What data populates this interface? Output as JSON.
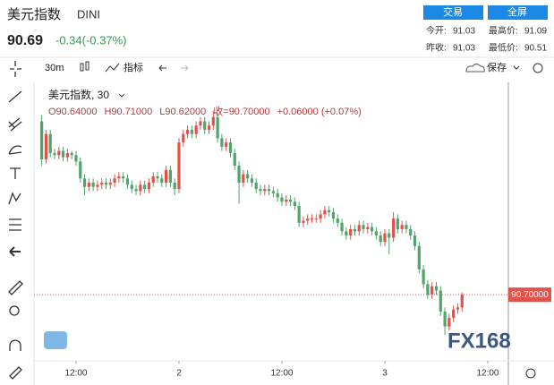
{
  "header": {
    "name": "美元指数",
    "symbol": "DINI",
    "price": "90.69",
    "change": "-0.34(-0.37%)",
    "buttons": [
      "交易",
      "全屏"
    ],
    "stats": [
      [
        "今开:",
        "91.03"
      ],
      [
        "最高价:",
        "91.09"
      ],
      [
        "昨收:",
        "91.03"
      ],
      [
        "最低价:",
        "90.51"
      ]
    ]
  },
  "toolbar": {
    "interval": "30m",
    "indicators": "指标",
    "save": "保存"
  },
  "chart_data": {
    "type": "candlestick",
    "legend_title": "美元指数, 30",
    "legend_values": [
      "O90.64000",
      "H90.71000",
      "L90.62000",
      "收=90.70000",
      "+0.06000 (+0.07%)"
    ],
    "watermark": "FX168",
    "up_color": "#e0534a",
    "down_color": "#4fa46a",
    "last_price": {
      "value": 90.7,
      "label": "90.70000"
    },
    "xlim": [
      -1.8,
      108.8
    ],
    "xticks": [
      {
        "value": 8,
        "label": "12:00"
      },
      {
        "value": 32,
        "label": "2"
      },
      {
        "value": 56,
        "label": "12:00"
      },
      {
        "value": 80,
        "label": "3"
      },
      {
        "value": 104,
        "label": "12:00"
      }
    ],
    "ylim": [
      90.4,
      91.7
    ],
    "open": [
      91.52,
      91.34,
      91.46,
      91.37,
      91.36,
      91.38,
      91.35,
      91.37,
      91.36,
      91.33,
      91.25,
      91.21,
      91.23,
      91.21,
      91.22,
      91.23,
      91.22,
      91.23,
      91.25,
      91.26,
      91.25,
      91.22,
      91.2,
      91.19,
      91.22,
      91.2,
      91.23,
      91.26,
      91.25,
      91.23,
      91.29,
      91.23,
      91.2,
      91.42,
      91.46,
      91.48,
      91.46,
      91.5,
      91.52,
      91.48,
      91.5,
      91.54,
      91.44,
      91.4,
      91.42,
      91.37,
      91.31,
      91.23,
      91.27,
      91.25,
      91.23,
      91.2,
      91.19,
      91.2,
      91.19,
      91.18,
      91.16,
      91.14,
      91.15,
      91.14,
      91.12,
      91.04,
      91.05,
      91.06,
      91.06,
      91.06,
      91.08,
      91.1,
      91.09,
      91.06,
      91.04,
      91.0,
      90.98,
      91.01,
      91.0,
      91.03,
      91.01,
      91.02,
      91.0,
      90.98,
      90.95,
      90.99,
      90.97,
      91.06,
      91.01,
      91.03,
      91.01,
      90.98,
      90.93,
      90.82,
      90.75,
      90.7,
      90.74,
      90.72,
      90.62,
      90.55,
      90.59,
      90.63,
      90.64
    ],
    "high": [
      91.55,
      91.48,
      91.48,
      91.39,
      91.4,
      91.4,
      91.39,
      91.38,
      91.38,
      91.35,
      91.27,
      91.25,
      91.25,
      91.24,
      91.25,
      91.25,
      91.25,
      91.27,
      91.28,
      91.28,
      91.27,
      91.24,
      91.22,
      91.24,
      91.24,
      91.25,
      91.28,
      91.28,
      91.27,
      91.31,
      91.31,
      91.25,
      91.44,
      91.48,
      91.5,
      91.5,
      91.52,
      91.54,
      91.54,
      91.52,
      91.57,
      91.56,
      91.46,
      91.44,
      91.44,
      91.39,
      91.33,
      91.29,
      91.29,
      91.27,
      91.25,
      91.22,
      91.22,
      91.22,
      91.21,
      91.2,
      91.18,
      91.17,
      91.17,
      91.16,
      91.14,
      91.07,
      91.08,
      91.08,
      91.08,
      91.1,
      91.12,
      91.12,
      91.11,
      91.08,
      91.06,
      91.02,
      91.03,
      91.03,
      91.05,
      91.05,
      91.04,
      91.04,
      91.02,
      91.0,
      91.01,
      91.01,
      91.09,
      91.08,
      91.05,
      91.05,
      91.03,
      91.0,
      90.95,
      90.84,
      90.77,
      90.76,
      90.76,
      90.74,
      90.64,
      90.61,
      90.65,
      90.66,
      90.71
    ],
    "low": [
      91.31,
      91.32,
      91.35,
      91.34,
      91.34,
      91.33,
      91.33,
      91.34,
      91.31,
      91.23,
      91.17,
      91.19,
      91.19,
      91.19,
      91.2,
      91.2,
      91.2,
      91.21,
      91.23,
      91.23,
      91.2,
      91.18,
      91.17,
      91.17,
      91.18,
      91.18,
      91.21,
      91.23,
      91.21,
      91.21,
      91.21,
      91.17,
      91.18,
      91.4,
      91.44,
      91.44,
      91.44,
      91.48,
      91.46,
      91.46,
      91.48,
      91.42,
      91.38,
      91.38,
      91.35,
      91.29,
      91.13,
      91.21,
      91.23,
      91.21,
      91.18,
      91.17,
      91.17,
      91.17,
      91.16,
      91.14,
      91.12,
      91.12,
      91.12,
      91.1,
      91.02,
      91.02,
      91.03,
      91.04,
      91.04,
      91.04,
      91.06,
      91.07,
      91.04,
      91.02,
      90.98,
      90.96,
      90.96,
      90.98,
      90.98,
      90.99,
      90.99,
      90.98,
      90.96,
      90.93,
      90.93,
      90.89,
      90.95,
      90.99,
      90.99,
      90.99,
      90.96,
      90.91,
      90.8,
      90.73,
      90.68,
      90.68,
      90.7,
      90.6,
      90.51,
      90.53,
      90.57,
      90.61,
      90.62
    ],
    "close": [
      91.34,
      91.46,
      91.37,
      91.36,
      91.38,
      91.35,
      91.37,
      91.36,
      91.33,
      91.25,
      91.21,
      91.23,
      91.21,
      91.22,
      91.23,
      91.22,
      91.23,
      91.25,
      91.26,
      91.25,
      91.22,
      91.2,
      91.19,
      91.22,
      91.2,
      91.23,
      91.26,
      91.25,
      91.23,
      91.29,
      91.23,
      91.2,
      91.42,
      91.46,
      91.48,
      91.46,
      91.5,
      91.52,
      91.48,
      91.5,
      91.54,
      91.44,
      91.4,
      91.42,
      91.37,
      91.31,
      91.23,
      91.27,
      91.25,
      91.23,
      91.2,
      91.19,
      91.2,
      91.19,
      91.18,
      91.16,
      91.14,
      91.15,
      91.14,
      91.12,
      91.04,
      91.05,
      91.06,
      91.06,
      91.06,
      91.08,
      91.1,
      91.09,
      91.06,
      91.04,
      91.0,
      90.98,
      91.01,
      91.0,
      91.03,
      91.01,
      91.02,
      91.0,
      90.98,
      90.95,
      90.99,
      90.97,
      91.06,
      91.01,
      91.03,
      91.01,
      90.98,
      90.93,
      90.82,
      90.75,
      90.7,
      90.74,
      90.72,
      90.62,
      90.55,
      90.59,
      90.63,
      90.64,
      90.7
    ]
  }
}
